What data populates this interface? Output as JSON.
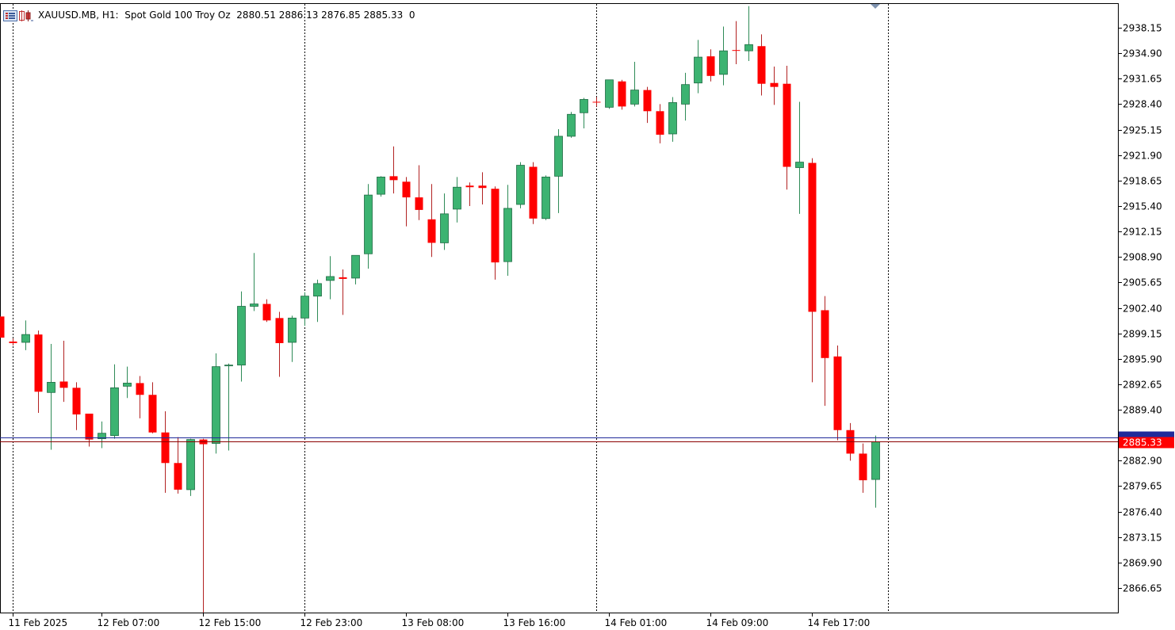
{
  "header": {
    "symbol": "XAUUSD.MB",
    "timeframe": "H1",
    "description": "Spot Gold 100 Troy Oz",
    "ohlc_text": "2880.51 2886.13 2876.85 2885.33",
    "tick_volume": "0",
    "full_text": "XAUUSD.MB, H1:  Spot Gold 100 Troy Oz  2880.51 2886.13 2876.85 2885.33  0"
  },
  "icons": {
    "menu": "list-menu-icon",
    "chart_type": "candlestick-chart-icon",
    "shift_marker": "chart-shift-triangle-icon"
  },
  "colors": {
    "bull": "#3cb371",
    "bear": "#ff0000",
    "frame": "#000000",
    "grid": "#000000",
    "bid_line": "#8b0000",
    "ask_line": "#1f2a9a",
    "price_label_bg": "#ff0000",
    "price_label_fg": "#ffffff",
    "ask_label_bg": "#1f2a9a"
  },
  "price_label": {
    "bid": "2885.33"
  },
  "chart_data": {
    "type": "candlestick",
    "title": "XAUUSD.MB, H1:  Spot Gold 100 Troy Oz",
    "y_ticks": [
      "2938.15",
      "2934.90",
      "2931.65",
      "2928.40",
      "2925.15",
      "2921.90",
      "2918.65",
      "2915.40",
      "2912.15",
      "2908.90",
      "2905.65",
      "2902.40",
      "2899.15",
      "2895.90",
      "2892.65",
      "2889.40",
      "2882.90",
      "2879.65",
      "2876.40",
      "2873.15",
      "2869.90",
      "2866.65"
    ],
    "ylim": [
      2862.9,
      2942.0
    ],
    "x_labels": [
      "11 Feb 2025",
      "12 Feb 07:00",
      "12 Feb 15:00",
      "12 Feb 23:00",
      "13 Feb 08:00",
      "13 Feb 16:00",
      "14 Feb 01:00",
      "14 Feb 09:00",
      "14 Feb 17:00"
    ],
    "x_label_bar_index": [
      1,
      8,
      16,
      24,
      32,
      40,
      48,
      56,
      64
    ],
    "day_separator_bar_index": [
      1,
      24,
      47,
      70
    ],
    "bid_price": 2885.33,
    "ask_price": 2885.83,
    "grid": false,
    "candles": [
      {
        "o": 2901.3,
        "h": 2901.3,
        "l": 2898.6,
        "c": 2898.6
      },
      {
        "o": 2898.1,
        "h": 2898.5,
        "l": 2897.6,
        "c": 2897.9
      },
      {
        "o": 2898.0,
        "h": 2900.8,
        "l": 2897.0,
        "c": 2899.0
      },
      {
        "o": 2899.0,
        "h": 2899.5,
        "l": 2889.0,
        "c": 2891.7
      },
      {
        "o": 2891.6,
        "h": 2897.8,
        "l": 2884.3,
        "c": 2892.9
      },
      {
        "o": 2893.0,
        "h": 2898.2,
        "l": 2890.4,
        "c": 2892.2
      },
      {
        "o": 2892.2,
        "h": 2892.9,
        "l": 2886.8,
        "c": 2888.8
      },
      {
        "o": 2888.9,
        "h": 2888.9,
        "l": 2884.7,
        "c": 2885.6
      },
      {
        "o": 2885.7,
        "h": 2887.9,
        "l": 2884.5,
        "c": 2886.4
      },
      {
        "o": 2886.1,
        "h": 2895.2,
        "l": 2885.7,
        "c": 2892.2
      },
      {
        "o": 2892.4,
        "h": 2894.9,
        "l": 2890.9,
        "c": 2892.8
      },
      {
        "o": 2892.8,
        "h": 2893.7,
        "l": 2888.3,
        "c": 2891.3
      },
      {
        "o": 2891.3,
        "h": 2892.9,
        "l": 2886.4,
        "c": 2886.5
      },
      {
        "o": 2886.5,
        "h": 2889.2,
        "l": 2878.8,
        "c": 2882.6
      },
      {
        "o": 2882.6,
        "h": 2885.9,
        "l": 2878.7,
        "c": 2879.2
      },
      {
        "o": 2879.2,
        "h": 2885.7,
        "l": 2878.4,
        "c": 2885.6
      },
      {
        "o": 2885.6,
        "h": 2885.7,
        "l": 2863.5,
        "c": 2885.0
      },
      {
        "o": 2885.1,
        "h": 2896.6,
        "l": 2883.8,
        "c": 2894.9
      },
      {
        "o": 2895.1,
        "h": 2895.3,
        "l": 2884.2,
        "c": 2895.1
      },
      {
        "o": 2895.1,
        "h": 2904.5,
        "l": 2893.0,
        "c": 2902.6
      },
      {
        "o": 2902.6,
        "h": 2909.4,
        "l": 2902.0,
        "c": 2902.9
      },
      {
        "o": 2902.9,
        "h": 2903.5,
        "l": 2900.6,
        "c": 2900.8
      },
      {
        "o": 2901.1,
        "h": 2901.9,
        "l": 2893.6,
        "c": 2897.9
      },
      {
        "o": 2898.0,
        "h": 2901.4,
        "l": 2895.5,
        "c": 2901.1
      },
      {
        "o": 2901.1,
        "h": 2904.4,
        "l": 2900.1,
        "c": 2903.9
      },
      {
        "o": 2903.9,
        "h": 2906.0,
        "l": 2900.6,
        "c": 2905.5
      },
      {
        "o": 2905.9,
        "h": 2909.0,
        "l": 2903.5,
        "c": 2906.4
      },
      {
        "o": 2906.3,
        "h": 2907.3,
        "l": 2901.5,
        "c": 2906.1
      },
      {
        "o": 2906.2,
        "h": 2909.1,
        "l": 2905.4,
        "c": 2909.1
      },
      {
        "o": 2909.3,
        "h": 2918.2,
        "l": 2907.4,
        "c": 2916.8
      },
      {
        "o": 2916.9,
        "h": 2919.2,
        "l": 2916.6,
        "c": 2919.1
      },
      {
        "o": 2919.2,
        "h": 2923.0,
        "l": 2917.0,
        "c": 2918.7
      },
      {
        "o": 2918.5,
        "h": 2919.1,
        "l": 2912.8,
        "c": 2916.5
      },
      {
        "o": 2916.5,
        "h": 2920.6,
        "l": 2913.6,
        "c": 2914.9
      },
      {
        "o": 2913.7,
        "h": 2918.2,
        "l": 2908.9,
        "c": 2910.7
      },
      {
        "o": 2910.7,
        "h": 2917.0,
        "l": 2909.8,
        "c": 2914.4
      },
      {
        "o": 2915.0,
        "h": 2919.1,
        "l": 2913.3,
        "c": 2917.8
      },
      {
        "o": 2918.0,
        "h": 2918.4,
        "l": 2915.4,
        "c": 2917.8
      },
      {
        "o": 2918.0,
        "h": 2919.7,
        "l": 2915.6,
        "c": 2917.7
      },
      {
        "o": 2917.6,
        "h": 2917.9,
        "l": 2906.0,
        "c": 2908.2
      },
      {
        "o": 2908.3,
        "h": 2918.1,
        "l": 2906.5,
        "c": 2915.1
      },
      {
        "o": 2915.6,
        "h": 2921.0,
        "l": 2915.1,
        "c": 2920.6
      },
      {
        "o": 2920.4,
        "h": 2921.0,
        "l": 2913.1,
        "c": 2913.8
      },
      {
        "o": 2913.8,
        "h": 2919.3,
        "l": 2913.6,
        "c": 2919.1
      },
      {
        "o": 2919.2,
        "h": 2925.2,
        "l": 2914.5,
        "c": 2924.3
      },
      {
        "o": 2924.3,
        "h": 2927.4,
        "l": 2924.1,
        "c": 2927.1
      },
      {
        "o": 2927.3,
        "h": 2929.2,
        "l": 2925.3,
        "c": 2929.0
      },
      {
        "o": 2928.7,
        "h": 2929.3,
        "l": 2928.1,
        "c": 2928.6
      },
      {
        "o": 2928.0,
        "h": 2931.5,
        "l": 2927.8,
        "c": 2931.5
      },
      {
        "o": 2931.3,
        "h": 2931.5,
        "l": 2927.7,
        "c": 2928.1
      },
      {
        "o": 2928.4,
        "h": 2933.8,
        "l": 2928.1,
        "c": 2930.2
      },
      {
        "o": 2930.2,
        "h": 2930.6,
        "l": 2926.0,
        "c": 2927.5
      },
      {
        "o": 2927.5,
        "h": 2928.4,
        "l": 2923.4,
        "c": 2924.5
      },
      {
        "o": 2924.6,
        "h": 2929.3,
        "l": 2923.6,
        "c": 2928.6
      },
      {
        "o": 2928.4,
        "h": 2932.4,
        "l": 2926.3,
        "c": 2930.9
      },
      {
        "o": 2931.1,
        "h": 2936.6,
        "l": 2929.8,
        "c": 2934.4
      },
      {
        "o": 2934.5,
        "h": 2935.4,
        "l": 2931.3,
        "c": 2932.0
      },
      {
        "o": 2932.2,
        "h": 2938.3,
        "l": 2930.8,
        "c": 2935.2
      },
      {
        "o": 2935.3,
        "h": 2939.0,
        "l": 2933.5,
        "c": 2935.2
      },
      {
        "o": 2935.2,
        "h": 2940.9,
        "l": 2933.9,
        "c": 2936.0
      },
      {
        "o": 2935.8,
        "h": 2937.3,
        "l": 2929.5,
        "c": 2931.0
      },
      {
        "o": 2931.1,
        "h": 2933.2,
        "l": 2928.3,
        "c": 2930.6
      },
      {
        "o": 2931.0,
        "h": 2933.3,
        "l": 2917.5,
        "c": 2920.4
      },
      {
        "o": 2920.3,
        "h": 2928.7,
        "l": 2914.4,
        "c": 2921.0
      },
      {
        "o": 2920.9,
        "h": 2921.5,
        "l": 2892.9,
        "c": 2901.9
      },
      {
        "o": 2902.1,
        "h": 2903.9,
        "l": 2889.9,
        "c": 2896.0
      },
      {
        "o": 2896.2,
        "h": 2897.6,
        "l": 2885.5,
        "c": 2886.8
      },
      {
        "o": 2886.8,
        "h": 2887.7,
        "l": 2882.9,
        "c": 2883.8
      },
      {
        "o": 2883.8,
        "h": 2885.1,
        "l": 2878.8,
        "c": 2880.4
      },
      {
        "o": 2880.5,
        "h": 2886.1,
        "l": 2876.9,
        "c": 2885.3
      }
    ]
  }
}
